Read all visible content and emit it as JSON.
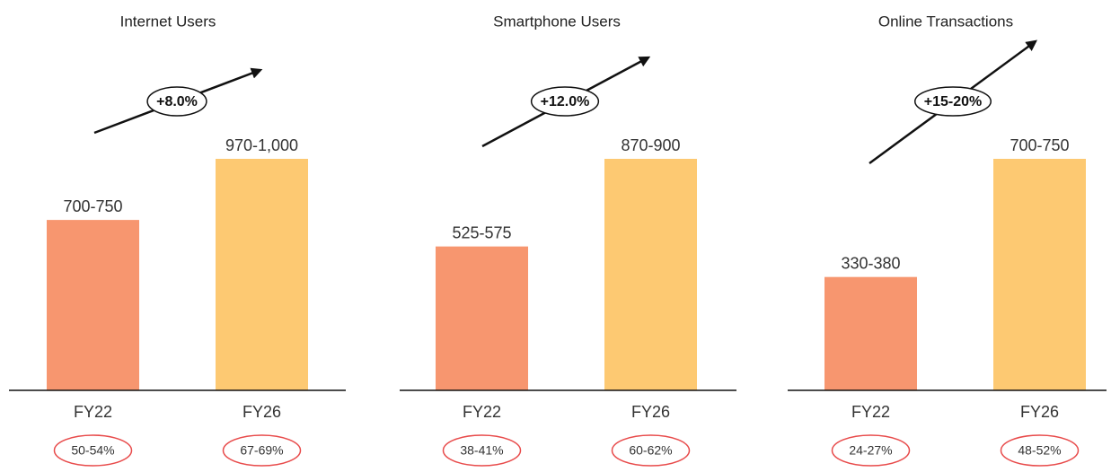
{
  "chart_data": [
    {
      "type": "bar",
      "title": "Internet Users",
      "growth_label": "+8.0%",
      "categories": [
        "FY22",
        "FY26"
      ],
      "values": [
        725,
        985
      ],
      "value_labels": [
        "700-750",
        "970-1,000"
      ],
      "colors": [
        "#f7966f",
        "#fdc972"
      ],
      "category_notes": [
        "50-54%",
        "67-69%"
      ]
    },
    {
      "type": "bar",
      "title": "Smartphone Users",
      "growth_label": "+12.0%",
      "categories": [
        "FY22",
        "FY26"
      ],
      "values": [
        550,
        885
      ],
      "value_labels": [
        "525-575",
        "870-900"
      ],
      "colors": [
        "#f7966f",
        "#fdc972"
      ],
      "category_notes": [
        "38-41%",
        "60-62%"
      ]
    },
    {
      "type": "bar",
      "title": "Online Transactions",
      "growth_label": "+15-20%",
      "categories": [
        "FY22",
        "FY26"
      ],
      "values": [
        355,
        725
      ],
      "value_labels": [
        "330-380",
        "700-750"
      ],
      "colors": [
        "#f7966f",
        "#fdc972"
      ],
      "category_notes": [
        "24-27%",
        "48-52%"
      ]
    }
  ]
}
